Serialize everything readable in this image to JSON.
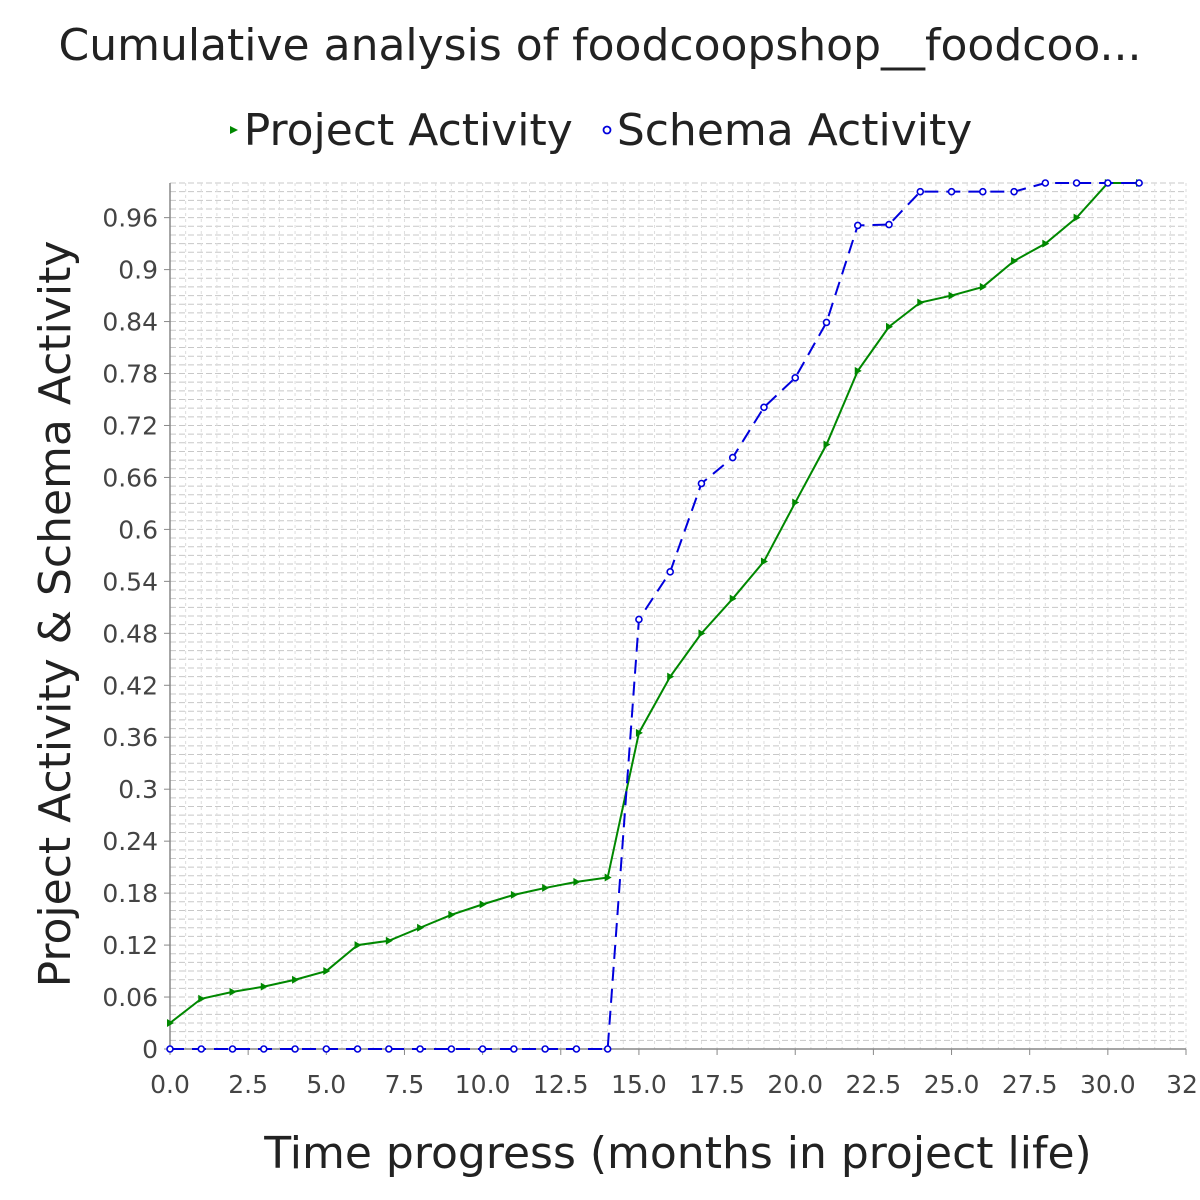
{
  "title": "Cumulative analysis of foodcoopshop__foodcoo...",
  "colors": {
    "project": "#008800",
    "schema": "#0000dd",
    "grid": "#c8c8c8",
    "axis": "#888888"
  },
  "chart_data": {
    "type": "line",
    "title": "Cumulative analysis of foodcoopshop__foodcoo...",
    "xlabel": "Time progress (months in project life)",
    "ylabel": "Project Activity & Schema Activity",
    "xlim": [
      0,
      32.5
    ],
    "ylim": [
      0,
      1.0
    ],
    "x_ticks": [
      "0.0",
      "2.5",
      "5.0",
      "7.5",
      "10.0",
      "12.5",
      "15.0",
      "17.5",
      "20.0",
      "22.5",
      "25.0",
      "27.5",
      "30.0",
      "32."
    ],
    "y_ticks": [
      "0",
      "0.06",
      "0.12",
      "0.18",
      "0.24",
      "0.3",
      "0.36",
      "0.42",
      "0.48",
      "0.54",
      "0.6",
      "0.66",
      "0.72",
      "0.78",
      "0.84",
      "0.9",
      "0.96"
    ],
    "legend": "top",
    "series": [
      {
        "name": "Project Activity",
        "marker": "triangle",
        "line": "solid",
        "x": [
          0,
          1,
          2,
          3,
          4,
          5,
          6,
          7,
          8,
          9,
          10,
          11,
          12,
          13,
          14,
          15,
          16,
          17,
          18,
          19,
          20,
          21,
          22,
          23,
          24,
          25,
          26,
          27,
          28,
          29,
          30,
          31
        ],
        "y": [
          0.03,
          0.058,
          0.066,
          0.072,
          0.08,
          0.09,
          0.12,
          0.125,
          0.14,
          0.155,
          0.167,
          0.178,
          0.186,
          0.193,
          0.198,
          0.365,
          0.43,
          0.48,
          0.52,
          0.563,
          0.631,
          0.698,
          0.783,
          0.834,
          0.862,
          0.87,
          0.88,
          0.91,
          0.93,
          0.96,
          1.0,
          1.0
        ]
      },
      {
        "name": "Schema Activity",
        "marker": "circle",
        "line": "dashed",
        "x": [
          0,
          1,
          2,
          3,
          4,
          5,
          6,
          7,
          8,
          9,
          10,
          11,
          12,
          13,
          14,
          15,
          16,
          17,
          18,
          19,
          20,
          21,
          22,
          23,
          24,
          25,
          26,
          27,
          28,
          29,
          30,
          31
        ],
        "y": [
          0,
          0,
          0,
          0,
          0,
          0,
          0,
          0,
          0,
          0,
          0,
          0,
          0,
          0,
          0,
          0.496,
          0.551,
          0.653,
          0.683,
          0.741,
          0.775,
          0.839,
          0.951,
          0.952,
          0.99,
          0.99,
          0.99,
          0.99,
          1.0,
          1.0,
          1.0,
          1.0
        ]
      }
    ]
  }
}
